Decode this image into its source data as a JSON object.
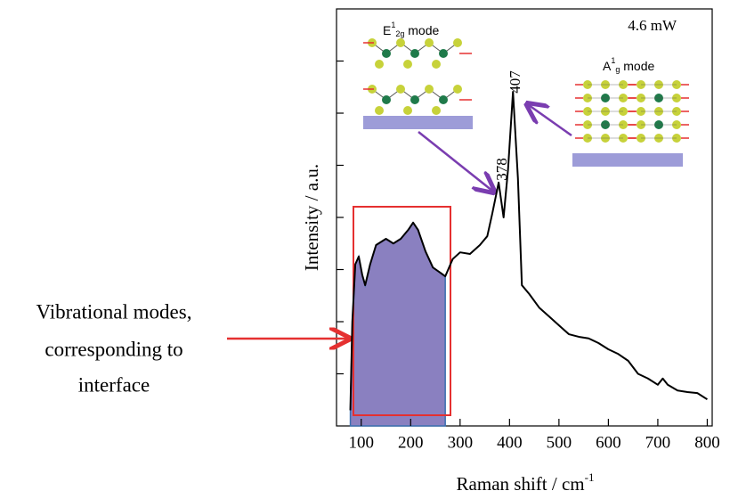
{
  "chart_data": {
    "type": "line",
    "x": [
      78,
      82,
      88,
      95,
      102,
      108,
      118,
      130,
      150,
      165,
      180,
      195,
      205,
      215,
      230,
      245,
      260,
      270,
      285,
      300,
      320,
      340,
      355,
      365,
      378,
      388,
      397,
      407,
      417,
      425,
      440,
      460,
      480,
      500,
      520,
      540,
      560,
      580,
      600,
      620,
      640,
      660,
      680,
      700,
      710,
      720,
      740,
      760,
      780,
      800
    ],
    "series": [
      {
        "color": "#000000",
        "values": [
          0.3,
          2.0,
          3.1,
          3.25,
          2.9,
          2.7,
          3.1,
          3.47,
          3.59,
          3.5,
          3.59,
          3.76,
          3.9,
          3.76,
          3.35,
          3.04,
          2.94,
          2.87,
          3.2,
          3.33,
          3.3,
          3.47,
          3.64,
          4.07,
          4.67,
          4.0,
          4.92,
          6.41,
          4.75,
          2.7,
          2.53,
          2.27,
          2.1,
          1.93,
          1.76,
          1.71,
          1.68,
          1.59,
          1.47,
          1.38,
          1.25,
          1.0,
          0.91,
          0.79,
          0.91,
          0.79,
          0.68,
          0.65,
          0.63,
          0.51
        ]
      }
    ],
    "xlim": [
      50,
      810
    ],
    "xticks": [
      100,
      200,
      300,
      400,
      500,
      600,
      700,
      800
    ],
    "ylim": [
      0,
      8
    ],
    "yticks": [
      1,
      2,
      3,
      4,
      5,
      6,
      7
    ],
    "x_label": {
      "text": "Raman shift / cm",
      "sup": "-1"
    },
    "y_label": "Intensity / a.u.",
    "power_label": "4.6 mW",
    "peak_labels": [
      "378",
      "407"
    ],
    "e_mode": {
      "base": "E",
      "sup": "1",
      "sub": "2g",
      "rest": " mode"
    },
    "a_mode": {
      "base": "A",
      "sup": "1",
      "sub": "g",
      "rest": " mode"
    },
    "highlight_color": "#8a80c0",
    "side_note": [
      "Vibrational modes,",
      "corresponding to",
      "interface"
    ]
  }
}
